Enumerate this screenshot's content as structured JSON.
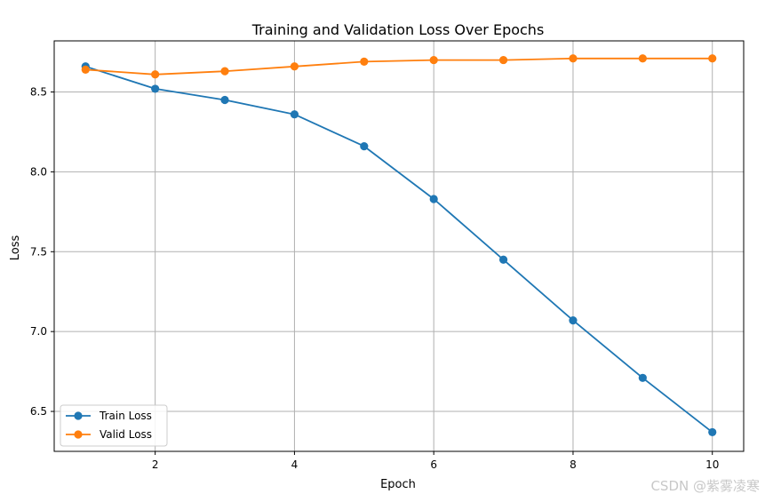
{
  "chart_data": {
    "type": "line",
    "title": "Training and Validation Loss Over Epochs",
    "xlabel": "Epoch",
    "ylabel": "Loss",
    "x": [
      1,
      2,
      3,
      4,
      5,
      6,
      7,
      8,
      9,
      10
    ],
    "xlim": [
      0.55,
      10.45
    ],
    "ylim": [
      6.25,
      8.82
    ],
    "xticks": [
      2,
      4,
      6,
      8,
      10
    ],
    "xtick_labels": [
      "2",
      "4",
      "6",
      "8",
      "10"
    ],
    "yticks": [
      6.5,
      7.0,
      7.5,
      8.0,
      8.5
    ],
    "ytick_labels": [
      "6.5",
      "7.0",
      "7.5",
      "8.0",
      "8.5"
    ],
    "grid": true,
    "legend_position": "lower-left",
    "series": [
      {
        "name": "Train Loss",
        "color": "#1f77b4",
        "marker": "circle",
        "values": [
          8.66,
          8.52,
          8.45,
          8.36,
          8.16,
          7.83,
          7.45,
          7.07,
          6.71,
          6.37
        ]
      },
      {
        "name": "Valid Loss",
        "color": "#ff7f0e",
        "marker": "circle",
        "values": [
          8.64,
          8.61,
          8.63,
          8.66,
          8.69,
          8.7,
          8.7,
          8.71,
          8.71,
          8.71
        ]
      }
    ]
  },
  "watermark": "CSDN @紫雾凌寒"
}
